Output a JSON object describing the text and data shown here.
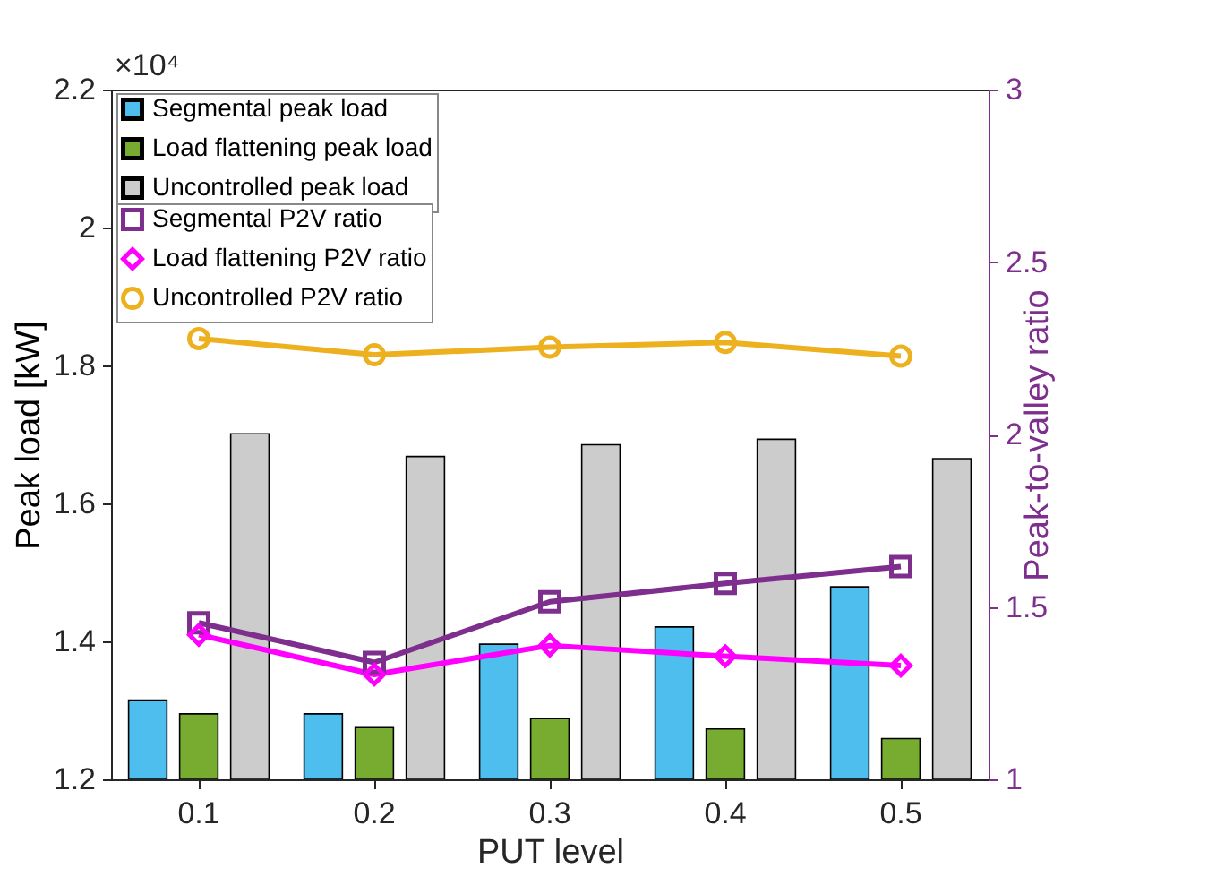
{
  "chart_data": {
    "type": "bar",
    "xlabel": "PUT level",
    "ylabel": "Peak load [kW]",
    "y2label": "Peak-to-valley ratio",
    "annotations": [
      "×10⁴"
    ],
    "categories": [
      "0.1",
      "0.2",
      "0.3",
      "0.4",
      "0.5"
    ],
    "ylim": [
      1.2,
      2.2
    ],
    "yticks": [
      1.2,
      1.4,
      1.6,
      1.8,
      2,
      2.2
    ],
    "y2lim": [
      1,
      3
    ],
    "y2ticks": [
      1,
      1.5,
      2,
      2.5,
      3
    ],
    "grid": false,
    "legend": "top left",
    "series": [
      {
        "name": "Segmental peak load",
        "color": "#4dbeee",
        "values": [
          1.315,
          1.295,
          1.396,
          1.421,
          1.479
        ]
      },
      {
        "name": "Load flattening peak load",
        "color": "#77ac30",
        "values": [
          1.295,
          1.275,
          1.288,
          1.273,
          1.259
        ]
      },
      {
        "name": "Uncontrolled peak load",
        "color": "#cccccc",
        "values": [
          1.701,
          1.668,
          1.685,
          1.693,
          1.665
        ]
      },
      {
        "name": "Segmental P2V ratio",
        "type": "line",
        "axis": "y2",
        "marker": "square",
        "color": "#7e2f8e",
        "values": [
          1.454,
          1.339,
          1.515,
          1.568,
          1.617
        ]
      },
      {
        "name": "Load flattening P2V ratio",
        "type": "line",
        "axis": "y2",
        "marker": "diamond",
        "color": "#ff00ff",
        "values": [
          1.419,
          1.304,
          1.388,
          1.357,
          1.33
        ]
      },
      {
        "name": "Uncontrolled P2V ratio",
        "type": "line",
        "axis": "y2",
        "marker": "circle",
        "color": "#edb120",
        "values": [
          2.278,
          2.231,
          2.253,
          2.267,
          2.227
        ]
      }
    ]
  }
}
